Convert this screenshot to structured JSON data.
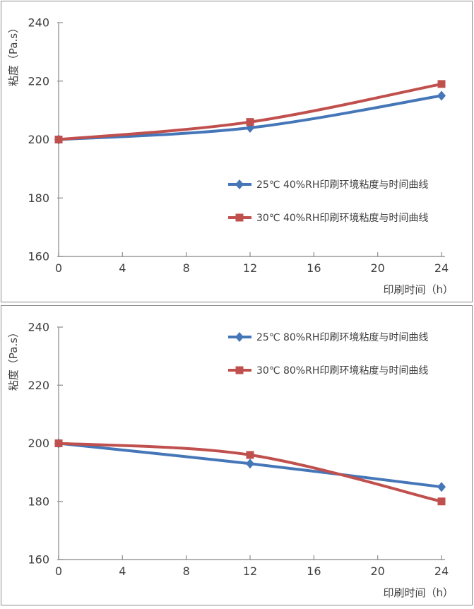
{
  "page": {
    "background": "#ffffff",
    "panel_border_color": "#8a8a8a",
    "axis_color": "#9a9a9a",
    "text_color": "#3f3f3f"
  },
  "chart_data": [
    {
      "type": "line",
      "title": "",
      "xlabel": "印刷时间（h）",
      "ylabel": "粘度（Pa.s）",
      "x": [
        0,
        12,
        24
      ],
      "x_ticks": [
        "0",
        "4",
        "8",
        "12",
        "16",
        "20",
        "24"
      ],
      "x_tick_values": [
        0,
        4,
        8,
        12,
        16,
        20,
        24
      ],
      "y_ticks": [
        "160",
        "180",
        "200",
        "220",
        "240"
      ],
      "y_tick_values": [
        160,
        180,
        200,
        220,
        240
      ],
      "xlim": [
        0,
        24
      ],
      "ylim": [
        160,
        240
      ],
      "grid": false,
      "line_style": "smooth",
      "legend_position": "middle-right",
      "series": [
        {
          "name": "25℃ 40%RH印刷环境粘度与时间曲线",
          "color": "#4476b8",
          "marker": "diamond",
          "values": [
            200,
            204,
            215
          ]
        },
        {
          "name": "30℃ 40%RH印刷环境粘度与时间曲线",
          "color": "#c0504d",
          "marker": "square",
          "values": [
            200,
            206,
            219
          ]
        }
      ]
    },
    {
      "type": "line",
      "title": "",
      "xlabel": "印刷时间（h）",
      "ylabel": "粘度（Pa.s）",
      "x": [
        0,
        12,
        24
      ],
      "x_ticks": [
        "0",
        "4",
        "8",
        "12",
        "16",
        "20",
        "24"
      ],
      "x_tick_values": [
        0,
        4,
        8,
        12,
        16,
        20,
        24
      ],
      "y_ticks": [
        "160",
        "180",
        "200",
        "220",
        "240"
      ],
      "y_tick_values": [
        160,
        180,
        200,
        220,
        240
      ],
      "xlim": [
        0,
        24
      ],
      "ylim": [
        160,
        240
      ],
      "grid": false,
      "line_style": "smooth",
      "legend_position": "top-right",
      "series": [
        {
          "name": "25℃ 80%RH印刷环境粘度与时间曲线",
          "color": "#4476b8",
          "marker": "diamond",
          "values": [
            200,
            193,
            185
          ]
        },
        {
          "name": "30℃ 80%RH印刷环境粘度与时间曲线",
          "color": "#c0504d",
          "marker": "square",
          "values": [
            200,
            196,
            180
          ]
        }
      ]
    }
  ]
}
